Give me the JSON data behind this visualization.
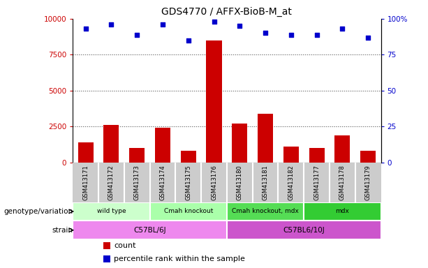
{
  "title": "GDS4770 / AFFX-BioB-M_at",
  "samples": [
    "GSM413171",
    "GSM413172",
    "GSM413173",
    "GSM413174",
    "GSM413175",
    "GSM413176",
    "GSM413180",
    "GSM413181",
    "GSM413182",
    "GSM413177",
    "GSM413178",
    "GSM413179"
  ],
  "counts": [
    1400,
    2600,
    1000,
    2400,
    800,
    8500,
    2700,
    3400,
    1100,
    1000,
    1900,
    800
  ],
  "percentiles": [
    93,
    96,
    89,
    96,
    85,
    98,
    95,
    90,
    89,
    89,
    93,
    87
  ],
  "bar_color": "#cc0000",
  "dot_color": "#0000cc",
  "ylim_left": [
    0,
    10000
  ],
  "ylim_right": [
    0,
    100
  ],
  "yticks_left": [
    0,
    2500,
    5000,
    7500,
    10000
  ],
  "ytick_labels_left": [
    "0",
    "2500",
    "5000",
    "7500",
    "10000"
  ],
  "yticks_right": [
    0,
    25,
    50,
    75,
    100
  ],
  "ytick_labels_right": [
    "0",
    "25",
    "50",
    "75",
    "100%"
  ],
  "genotype_groups": [
    {
      "label": "wild type",
      "start": 0,
      "end": 3,
      "color": "#ccffcc"
    },
    {
      "label": "Cmah knockout",
      "start": 3,
      "end": 6,
      "color": "#aaffaa"
    },
    {
      "label": "Cmah knockout, mdx",
      "start": 6,
      "end": 9,
      "color": "#55dd55"
    },
    {
      "label": "mdx",
      "start": 9,
      "end": 12,
      "color": "#33cc33"
    }
  ],
  "strain_groups": [
    {
      "label": "C57BL/6J",
      "start": 0,
      "end": 6,
      "color": "#ee88ee"
    },
    {
      "label": "C57BL6/10J",
      "start": 6,
      "end": 12,
      "color": "#cc55cc"
    }
  ],
  "genotype_label": "genotype/variation",
  "strain_label": "strain",
  "legend_count_label": "count",
  "legend_percentile_label": "percentile rank within the sample",
  "grid_color": "#555555",
  "tick_area_color": "#cccccc",
  "background_color": "#ffffff"
}
